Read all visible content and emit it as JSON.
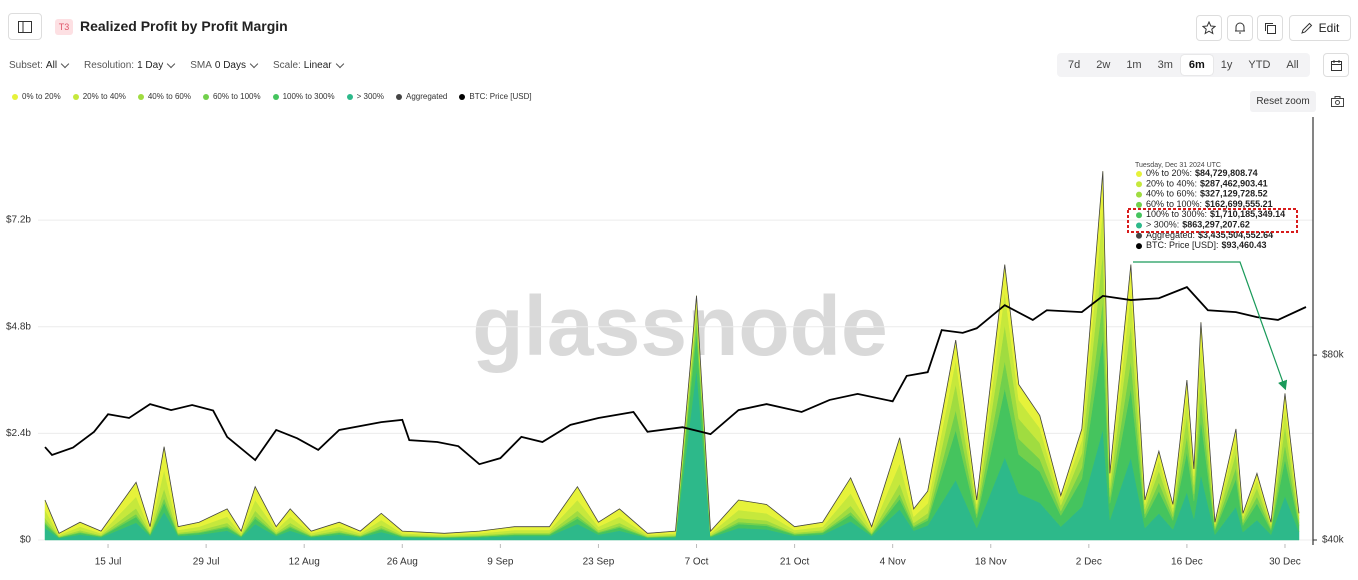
{
  "header": {
    "badge": "T3",
    "title": "Realized Profit by Profit Margin",
    "edit": "Edit"
  },
  "toolbar": {
    "controls": [
      {
        "label": "Subset:",
        "value": "All"
      },
      {
        "label": "Resolution:",
        "value": "1 Day"
      },
      {
        "label": "SMA",
        "value": "0 Days"
      },
      {
        "label": "Scale:",
        "value": "Linear"
      }
    ],
    "ranges": [
      "7d",
      "2w",
      "1m",
      "3m",
      "6m",
      "1y",
      "YTD",
      "All"
    ],
    "active_range": "6m"
  },
  "reset_zoom": "Reset zoom",
  "watermark": "glassnode",
  "chart_data": {
    "type": "area",
    "stacked": true,
    "grid": true,
    "x": [
      5,
      7,
      10,
      13,
      18,
      20,
      22,
      24,
      27,
      31,
      33,
      35,
      38,
      40,
      43,
      47,
      50,
      53,
      56,
      62,
      67,
      72,
      77,
      81,
      84,
      87,
      91,
      95,
      98,
      100,
      104,
      108,
      112,
      116,
      120,
      123,
      127,
      129,
      131,
      135,
      138,
      142,
      144,
      147,
      150,
      153,
      156,
      157,
      160,
      162,
      164,
      166,
      168,
      169,
      170,
      172,
      175,
      176,
      178,
      180,
      182,
      184
    ],
    "xlim": [
      4,
      186
    ],
    "xticks": [
      {
        "value": 14,
        "label": "15 Jul"
      },
      {
        "value": 28,
        "label": "29 Jul"
      },
      {
        "value": 42,
        "label": "12 Aug"
      },
      {
        "value": 56,
        "label": "26 Aug"
      },
      {
        "value": 70,
        "label": "9 Sep"
      },
      {
        "value": 84,
        "label": "23 Sep"
      },
      {
        "value": 98,
        "label": "7 Oct"
      },
      {
        "value": 112,
        "label": "21 Oct"
      },
      {
        "value": 126,
        "label": "4 Nov"
      },
      {
        "value": 140,
        "label": "18 Nov"
      },
      {
        "value": 154,
        "label": "2 Dec"
      },
      {
        "value": 168,
        "label": "16 Dec"
      },
      {
        "value": 182,
        "label": "30 Dec"
      }
    ],
    "ylim": [
      0,
      9.52
    ],
    "yticks": [
      {
        "value": 0,
        "label": "$0"
      },
      {
        "value": 2.4,
        "label": "$2.4b"
      },
      {
        "value": 4.8,
        "label": "$4.8b"
      },
      {
        "value": 7.2,
        "label": "$7.2b"
      }
    ],
    "y2lim": [
      40,
      131.5
    ],
    "y2ticks": [
      {
        "value": 40,
        "label": "$40k"
      },
      {
        "value": 80,
        "label": "$80k"
      }
    ],
    "series": [
      {
        "name": "0% to 20%",
        "color": "#e6f23a",
        "values": [
          0.225,
          0.038,
          0.1,
          0.05,
          0.325,
          0.075,
          0.525,
          0.075,
          0.1,
          0.175,
          0.05,
          0.3,
          0.075,
          0.175,
          0.05,
          0.1,
          0.05,
          0.15,
          0.05,
          0.038,
          0.05,
          0.075,
          0.075,
          0.3,
          0.1,
          0.175,
          0.038,
          0.05,
          0.165,
          0.05,
          0.225,
          0.2,
          0.075,
          0.1,
          0.35,
          0.075,
          0.575,
          0.175,
          0.275,
          0.45,
          0.09,
          0.62,
          0.35,
          0.28,
          0.1,
          0.25,
          0.83,
          0.15,
          0.62,
          0.09,
          0.2,
          0.08,
          0.36,
          0.16,
          0.49,
          0.04,
          0.25,
          0.06,
          0.15,
          0.04,
          0.33,
          0.06
        ]
      },
      {
        "name": "20% to 40%",
        "color": "#c6e83c",
        "values": [
          0.18,
          0.03,
          0.08,
          0.04,
          0.26,
          0.06,
          0.42,
          0.06,
          0.08,
          0.14,
          0.04,
          0.24,
          0.06,
          0.14,
          0.04,
          0.08,
          0.04,
          0.12,
          0.04,
          0.03,
          0.04,
          0.06,
          0.06,
          0.24,
          0.08,
          0.14,
          0.03,
          0.04,
          0.165,
          0.04,
          0.18,
          0.16,
          0.06,
          0.08,
          0.28,
          0.06,
          0.46,
          0.14,
          0.22,
          0.54,
          0.108,
          0.744,
          0.42,
          0.336,
          0.12,
          0.3,
          0.996,
          0.18,
          0.744,
          0.108,
          0.24,
          0.096,
          0.432,
          0.192,
          0.588,
          0.048,
          0.3,
          0.072,
          0.18,
          0.048,
          0.396,
          0.072
        ]
      },
      {
        "name": "40% to 60%",
        "color": "#a0dc40",
        "values": [
          0.09,
          0.015,
          0.04,
          0.02,
          0.13,
          0.03,
          0.21,
          0.03,
          0.04,
          0.07,
          0.02,
          0.12,
          0.03,
          0.07,
          0.02,
          0.04,
          0.02,
          0.06,
          0.02,
          0.015,
          0.02,
          0.03,
          0.03,
          0.12,
          0.04,
          0.07,
          0.015,
          0.02,
          0.22,
          0.02,
          0.09,
          0.08,
          0.03,
          0.04,
          0.14,
          0.03,
          0.23,
          0.07,
          0.11,
          0.585,
          0.117,
          0.806,
          0.455,
          0.364,
          0.13,
          0.325,
          1.079,
          0.195,
          0.806,
          0.117,
          0.26,
          0.104,
          0.468,
          0.208,
          0.637,
          0.052,
          0.325,
          0.078,
          0.195,
          0.052,
          0.429,
          0.078
        ]
      },
      {
        "name": "60% to 100%",
        "color": "#72d04c",
        "values": [
          0.045,
          0.008,
          0.02,
          0.01,
          0.065,
          0.015,
          0.105,
          0.015,
          0.02,
          0.035,
          0.01,
          0.06,
          0.015,
          0.035,
          0.01,
          0.02,
          0.01,
          0.03,
          0.01,
          0.008,
          0.01,
          0.015,
          0.015,
          0.06,
          0.02,
          0.035,
          0.008,
          0.01,
          0.275,
          0.01,
          0.045,
          0.04,
          0.015,
          0.02,
          0.07,
          0.015,
          0.115,
          0.035,
          0.055,
          0.45,
          0.09,
          0.62,
          0.35,
          0.28,
          0.1,
          0.25,
          0.83,
          0.15,
          0.62,
          0.09,
          0.2,
          0.08,
          0.36,
          0.16,
          0.49,
          0.04,
          0.25,
          0.06,
          0.15,
          0.04,
          0.33,
          0.06
        ]
      },
      {
        "name": "100% to 300%",
        "color": "#45c45e",
        "values": [
          0.09,
          0.015,
          0.04,
          0.02,
          0.13,
          0.03,
          0.21,
          0.03,
          0.04,
          0.07,
          0.02,
          0.12,
          0.03,
          0.07,
          0.02,
          0.04,
          0.02,
          0.06,
          0.02,
          0.015,
          0.02,
          0.03,
          0.03,
          0.12,
          0.04,
          0.07,
          0.015,
          0.02,
          0.825,
          0.02,
          0.09,
          0.08,
          0.03,
          0.04,
          0.14,
          0.03,
          0.23,
          0.07,
          0.11,
          1.125,
          0.225,
          1.55,
          0.875,
          0.7,
          0.25,
          0.625,
          2.075,
          0.375,
          1.55,
          0.225,
          0.5,
          0.2,
          0.9,
          0.4,
          1.225,
          0.1,
          0.625,
          0.15,
          0.375,
          0.1,
          0.825,
          0.15
        ]
      },
      {
        "name": "> 300%",
        "color": "#2db98a",
        "values": [
          0.27,
          0.045,
          0.12,
          0.06,
          0.39,
          0.09,
          0.63,
          0.09,
          0.12,
          0.21,
          0.06,
          0.36,
          0.09,
          0.21,
          0.06,
          0.12,
          0.06,
          0.18,
          0.06,
          0.045,
          0.06,
          0.09,
          0.09,
          0.36,
          0.12,
          0.21,
          0.045,
          0.06,
          3.85,
          0.06,
          0.27,
          0.24,
          0.09,
          0.12,
          0.42,
          0.09,
          0.69,
          0.21,
          0.33,
          1.35,
          0.27,
          1.86,
          1.05,
          0.84,
          0.3,
          0.75,
          2.49,
          0.45,
          1.86,
          0.27,
          0.6,
          0.24,
          1.08,
          0.48,
          1.47,
          0.12,
          0.75,
          0.18,
          0.45,
          0.12,
          0.99,
          0.18
        ]
      },
      {
        "name": "Aggregated",
        "type": "line",
        "color": "#444444",
        "values": [
          0.9,
          0.15,
          0.4,
          0.2,
          1.3,
          0.3,
          2.1,
          0.3,
          0.4,
          0.7,
          0.2,
          1.2,
          0.3,
          0.7,
          0.2,
          0.4,
          0.2,
          0.6,
          0.2,
          0.15,
          0.2,
          0.3,
          0.3,
          1.2,
          0.4,
          0.7,
          0.15,
          0.2,
          5.5,
          0.2,
          0.9,
          0.8,
          0.3,
          0.4,
          1.4,
          0.3,
          2.3,
          0.7,
          1.1,
          4.5,
          0.9,
          6.2,
          3.5,
          2.8,
          1.0,
          2.5,
          8.3,
          1.5,
          6.2,
          0.9,
          2.0,
          0.8,
          3.6,
          1.6,
          4.9,
          0.4,
          2.5,
          0.6,
          1.5,
          0.4,
          3.3,
          0.6
        ]
      },
      {
        "name": "BTC: Price [USD]",
        "type": "line",
        "axis": "y2",
        "color": "#000000",
        "x": [
          5,
          6,
          9,
          12,
          14,
          17,
          20,
          23,
          26,
          29,
          31,
          35,
          38,
          41,
          44,
          47,
          53,
          56,
          57,
          61,
          64,
          67,
          70,
          73,
          76,
          80,
          84,
          89,
          91,
          96,
          100,
          104,
          108,
          113,
          117,
          121,
          126,
          128,
          131,
          133,
          136,
          138,
          142,
          146,
          148,
          153,
          156,
          160,
          164,
          168,
          171,
          175,
          178,
          181,
          185
        ],
        "values": [
          60.1,
          58.4,
          60,
          63.4,
          67.2,
          66.4,
          69.4,
          68.1,
          69.2,
          68,
          62.3,
          57.3,
          63.8,
          62,
          59.5,
          63.8,
          65.5,
          66,
          61.6,
          61.2,
          60.3,
          56.4,
          57.7,
          62.3,
          61.2,
          64.9,
          66.4,
          67.7,
          63.4,
          64.4,
          62.9,
          68.1,
          69.4,
          67.7,
          70.3,
          71.6,
          70,
          75.5,
          76.3,
          85.4,
          84.8,
          85.8,
          90.8,
          87.6,
          89.7,
          89.3,
          92.8,
          91.9,
          92.3,
          94.7,
          89.7,
          89.3,
          88.2,
          87.6,
          90.4
        ]
      }
    ],
    "tooltip": {
      "title": "Tuesday, Dec 31 2024 UTC",
      "items": [
        {
          "name": "0% to 20%:",
          "value": "$84,729,808.74"
        },
        {
          "name": "20% to 40%:",
          "value": "$287,462,903.41"
        },
        {
          "name": "40% to 60%:",
          "value": "$327,129,728.52"
        },
        {
          "name": "60% to 100%:",
          "value": "$162,699,555.21"
        },
        {
          "name": "100% to 300%:",
          "value": "$1,710,185,349.14"
        },
        {
          "name": "> 300%:",
          "value": "$863,297,207.62"
        },
        {
          "name": "Aggregated:",
          "value": "$3,435,504,552.64"
        },
        {
          "name": "BTC: Price [USD]:",
          "value": "$93,460.43"
        }
      ]
    }
  }
}
